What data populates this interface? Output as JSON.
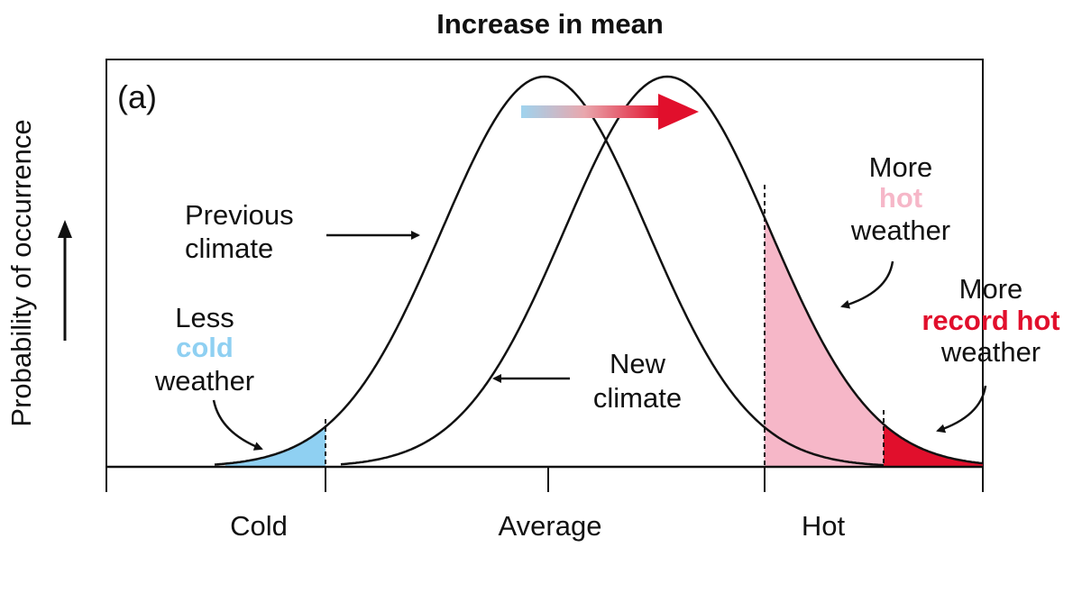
{
  "title": "Increase in mean",
  "panel_label": "(a)",
  "y_axis_label": "Probability of occurrence",
  "x_axis": {
    "tick_labels": [
      "Cold",
      "Average",
      "Hot"
    ]
  },
  "curves": {
    "previous": {
      "label_line1": "Previous",
      "label_line2": "climate"
    },
    "new": {
      "label_line1": "New",
      "label_line2": "climate"
    }
  },
  "annotations": {
    "less_cold": {
      "line1": "Less",
      "line2": "cold",
      "line3": "weather"
    },
    "more_hot": {
      "line1": "More",
      "line2": "hot",
      "line3": "weather"
    },
    "more_record_hot": {
      "line1": "More",
      "line2": "record hot",
      "line3": "weather"
    }
  },
  "colors": {
    "cold": "#8fd0f2",
    "hot": "#f6b7c8",
    "record_hot": "#e10f2c",
    "line": "#111111"
  }
}
